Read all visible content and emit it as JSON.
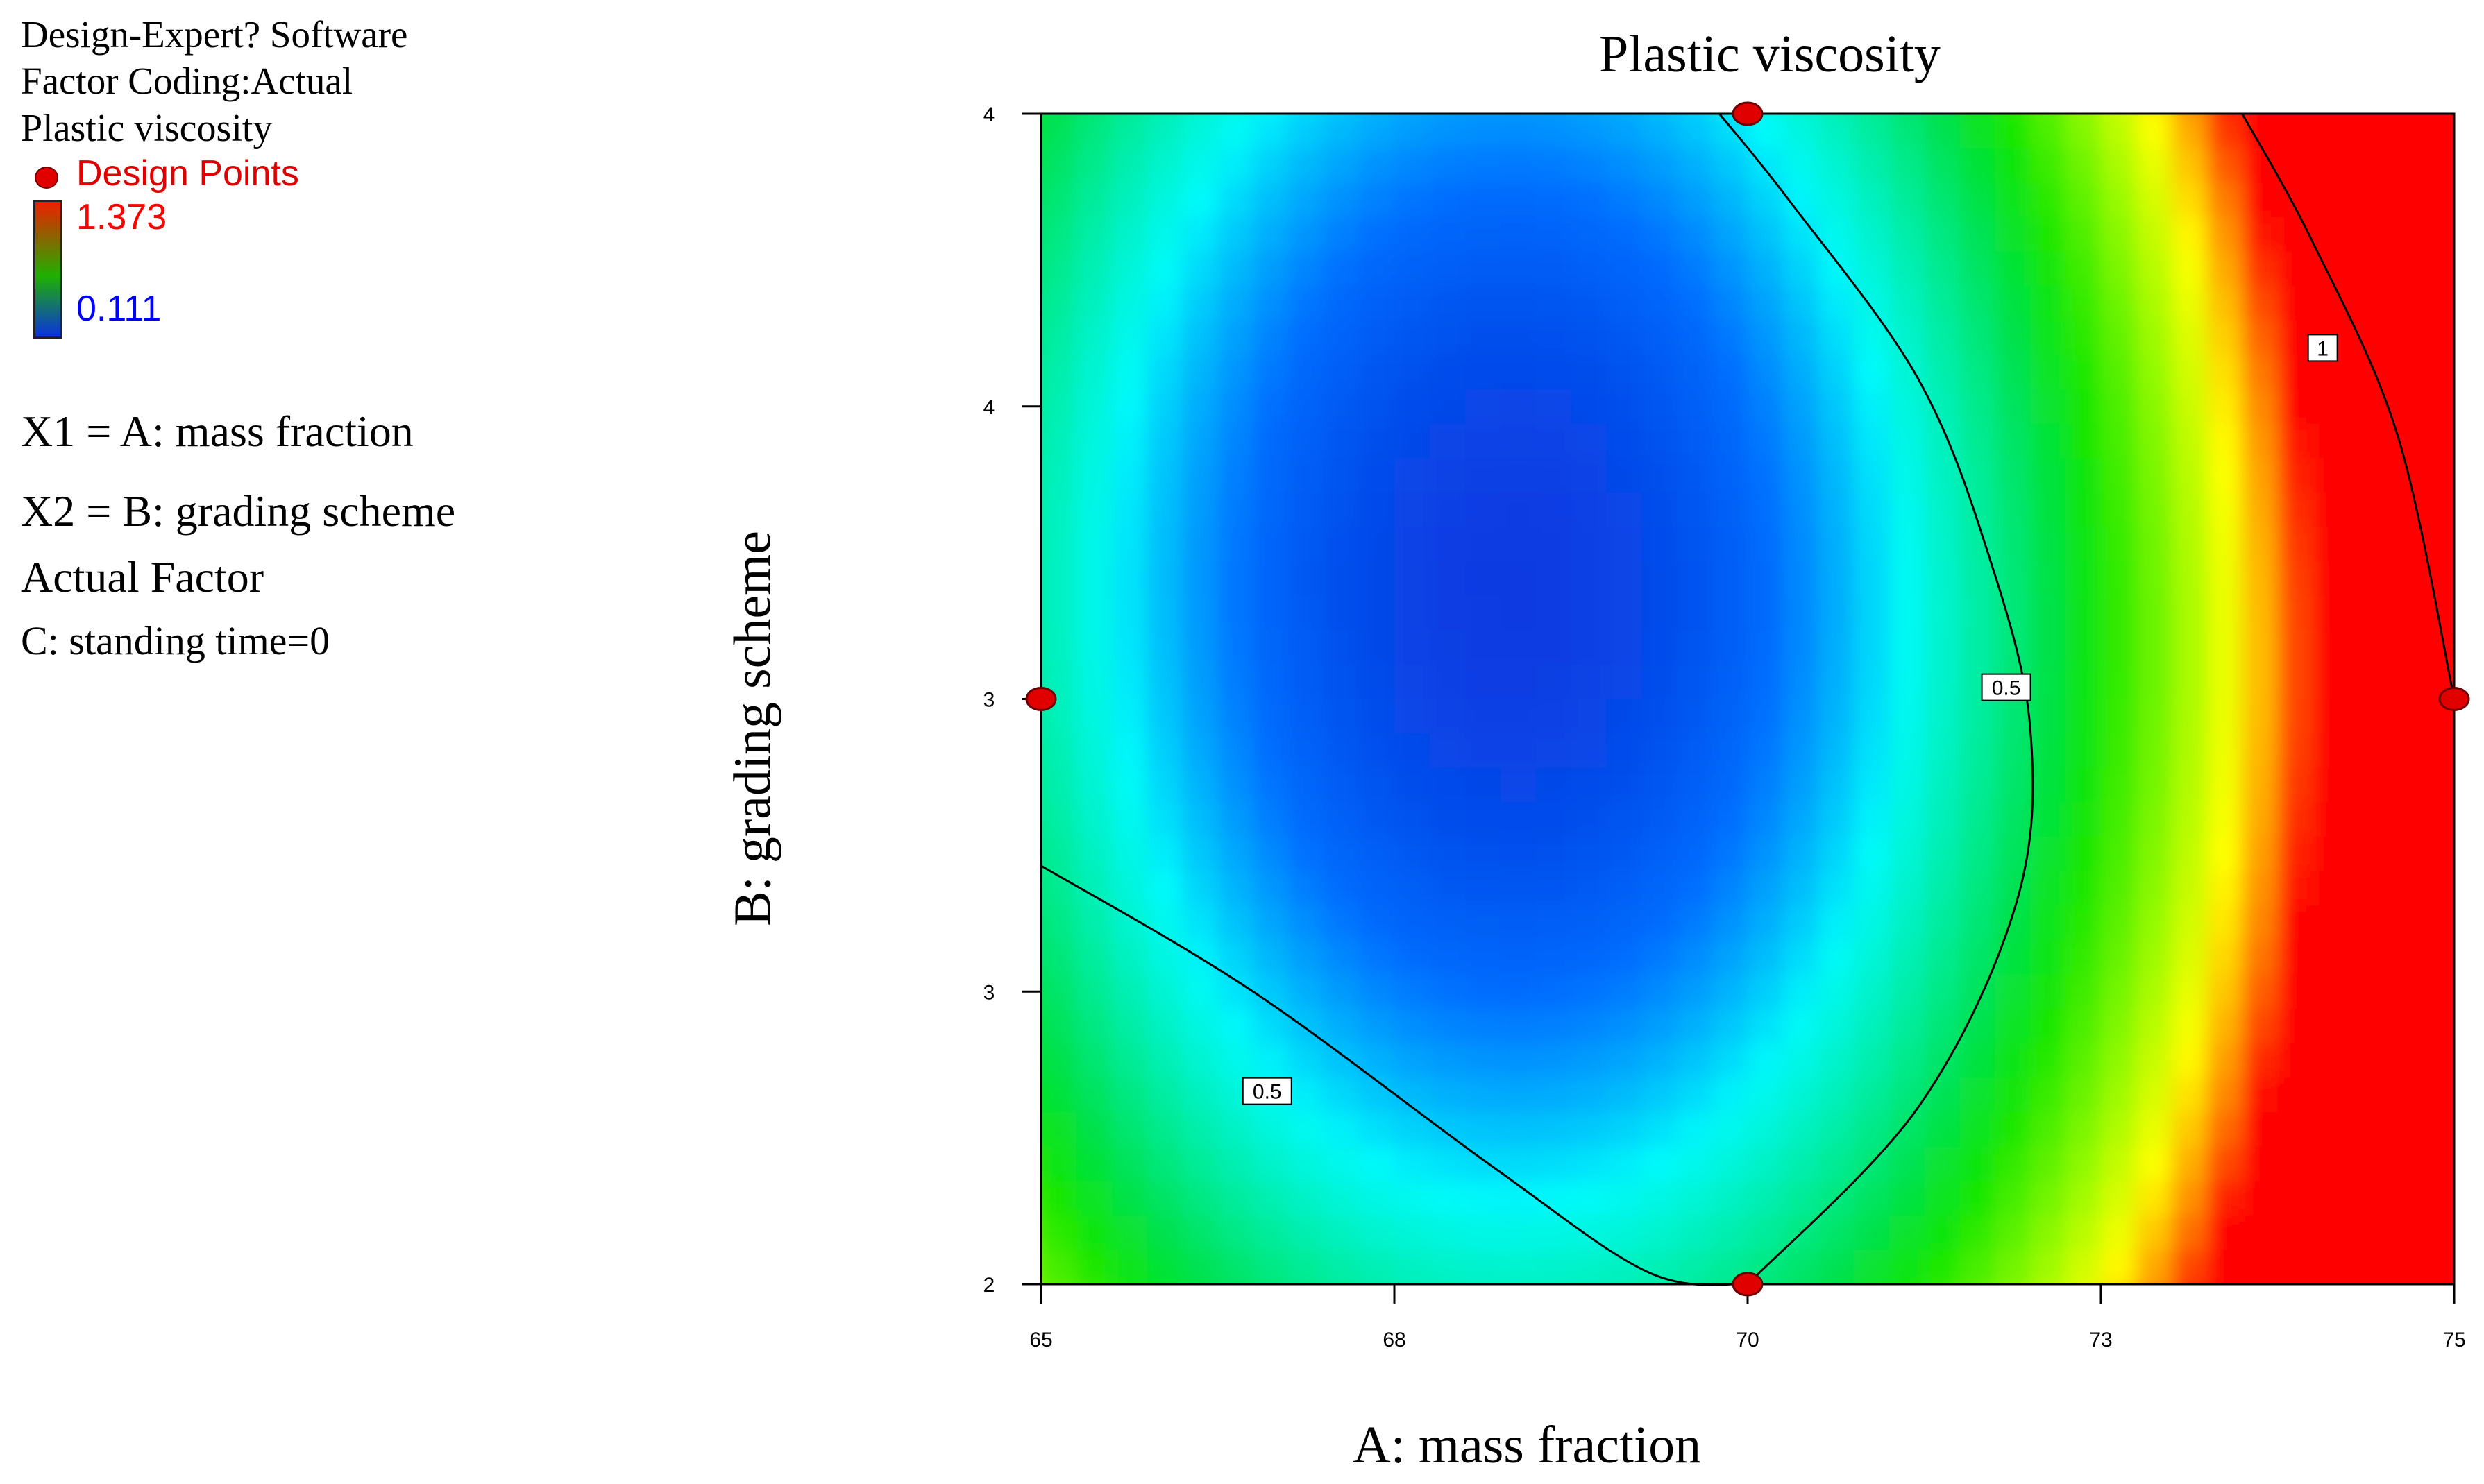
{
  "legend": {
    "software": "Design-Expert? Software",
    "factor_coding": "Factor Coding:Actual",
    "response": "Plastic viscosity",
    "design_points_label": "Design Points",
    "color_max": "1.373",
    "color_min": "0.111",
    "x1": "X1 = A: mass fraction",
    "x2": "X2 = B: grading scheme",
    "actual_factor": "Actual Factor",
    "constant": "C: standing time=0"
  },
  "colors": {
    "design_points": "#e00000",
    "high": "#ff0000",
    "mid": "#00e000",
    "low": "#0a3ad8",
    "max_label": "#ff0000",
    "min_label": "#0000ff"
  },
  "chart_data": {
    "type": "heatmap",
    "title": "Plastic viscosity",
    "xlabel": "A: mass fraction",
    "ylabel": "B: grading scheme",
    "x_ticks": [
      "65",
      "68",
      "70",
      "73",
      "75"
    ],
    "y_ticks": [
      "2",
      "3",
      "3",
      "4",
      "4"
    ],
    "xlim": [
      65,
      75
    ],
    "ylim": [
      2,
      4
    ],
    "color_scale": {
      "min": 0.111,
      "max": 1.373
    },
    "contours": [
      {
        "level": 0.5,
        "label": "0.5",
        "points": [
          [
            69.8,
            4.0
          ],
          [
            70.3,
            3.85
          ],
          [
            71.2,
            3.55
          ],
          [
            71.7,
            3.25
          ],
          [
            72.0,
            2.95
          ],
          [
            71.9,
            2.65
          ],
          [
            71.2,
            2.3
          ],
          [
            70.0,
            2.0
          ]
        ]
      },
      {
        "level": 0.5,
        "label": "0.5",
        "points": [
          [
            65.0,
            2.715
          ],
          [
            66.5,
            2.5
          ],
          [
            68.2,
            2.2
          ],
          [
            69.3,
            2.02
          ],
          [
            70.0,
            2.0
          ]
        ]
      },
      {
        "level": 1,
        "label": "1",
        "points": [
          [
            73.5,
            4.0
          ],
          [
            74.0,
            3.78
          ],
          [
            74.6,
            3.45
          ],
          [
            75.0,
            3.0
          ]
        ]
      }
    ],
    "contour_labels": [
      {
        "text": "0.5",
        "x": 71.83,
        "y": 3.02
      },
      {
        "text": "0.5",
        "x": 66.6,
        "y": 2.33
      },
      {
        "text": "1",
        "x": 74.07,
        "y": 3.6
      }
    ],
    "design_points": [
      {
        "x": 70,
        "y": 4
      },
      {
        "x": 65,
        "y": 3
      },
      {
        "x": 75,
        "y": 3
      },
      {
        "x": 70,
        "y": 2
      }
    ],
    "grid": false
  }
}
